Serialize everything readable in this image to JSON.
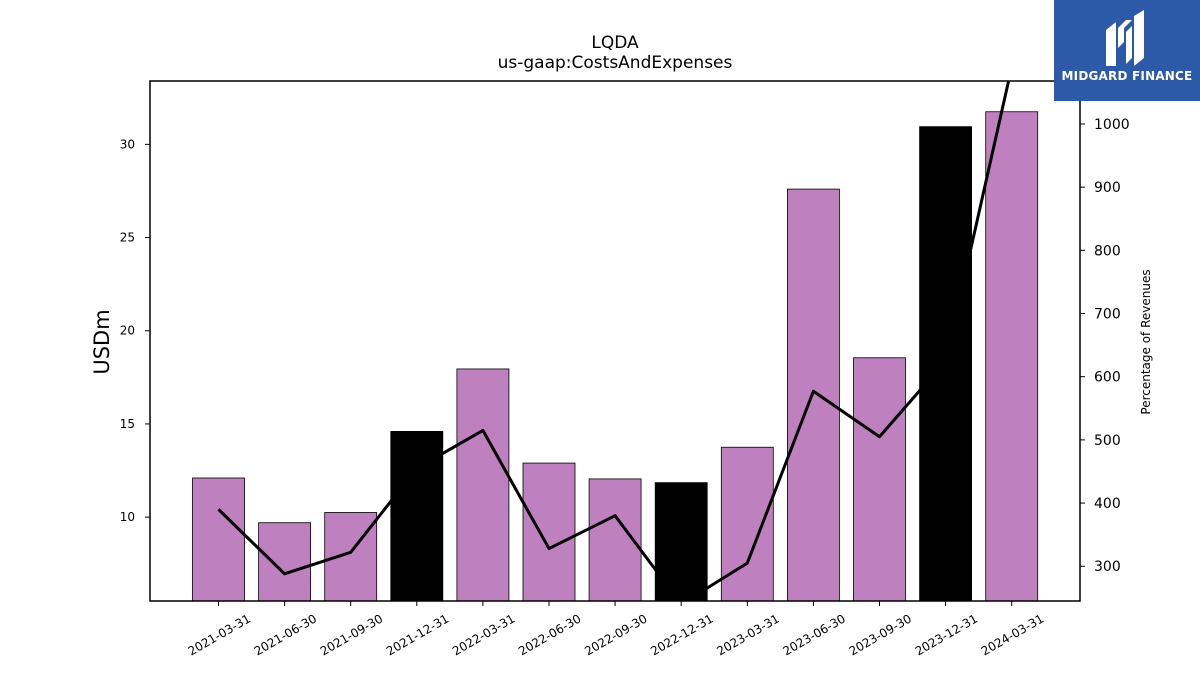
{
  "chart_data": {
    "type": "bar",
    "title": "LQDA",
    "subtitle": "us-gaap:CostsAndExpenses",
    "ylabel": "USDm",
    "y2label": "Percentage of Revenues",
    "categories": [
      "2021-03-31",
      "2021-06-30",
      "2021-09-30",
      "2021-12-31",
      "2022-03-31",
      "2022-06-30",
      "2022-09-30",
      "2022-12-31",
      "2023-03-31",
      "2023-06-30",
      "2023-09-30",
      "2023-12-31",
      "2024-03-31"
    ],
    "series": [
      {
        "kind": "bar",
        "axis": "left",
        "values": [
          12.1,
          9.7,
          10.25,
          14.6,
          17.95,
          12.9,
          12.05,
          11.85,
          13.75,
          27.6,
          18.55,
          30.95,
          31.75
        ],
        "colors": [
          "#bf80bf",
          "#bf80bf",
          "#bf80bf",
          "#000000",
          "#bf80bf",
          "#bf80bf",
          "#bf80bf",
          "#000000",
          "#bf80bf",
          "#bf80bf",
          "#bf80bf",
          "#000000",
          "#bf80bf"
        ]
      },
      {
        "kind": "line",
        "axis": "right",
        "color": "#000000",
        "values": [
          390,
          288,
          322,
          455,
          515,
          328,
          380,
          240,
          305,
          577,
          505,
          625,
          1090
        ]
      }
    ],
    "ylim": [
      5.5,
      33.4
    ],
    "y2lim": [
      245,
      1068
    ],
    "yticks": [
      10,
      15,
      20,
      25,
      30
    ],
    "y2ticks": [
      300,
      400,
      500,
      600,
      700,
      800,
      900,
      1000
    ],
    "grid": false
  },
  "logo": {
    "text": "MIDGARD FINANCE",
    "background": "#2d5aa8"
  }
}
